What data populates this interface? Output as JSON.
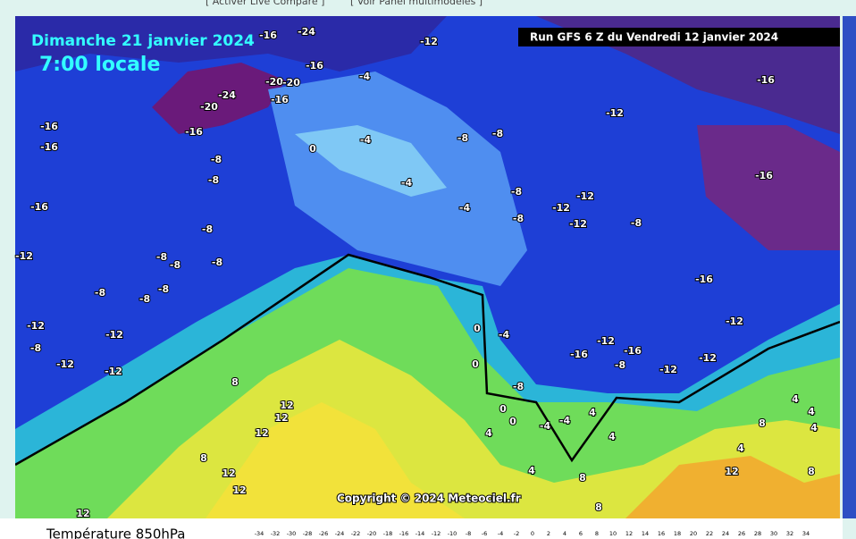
{
  "header": {
    "links": [
      "[ Activer Live Compare ]",
      "[ Voir Panel multimodèles ]"
    ]
  },
  "map": {
    "date": "Dimanche 21 janvier 2024",
    "time": "7:00 locale",
    "run": "Run GFS 6 Z du Vendredi 12 janvier 2024",
    "copyright": "Copyright © 2024 Meteociel.fr",
    "labels": [
      "-12",
      "-16",
      "-24",
      "-16",
      "-4",
      "-20",
      "-20",
      "-16",
      "-24",
      "-20",
      "-16",
      "-16",
      "-16",
      "-8",
      "-8",
      "-16",
      "-8",
      "-8",
      "-8",
      "-8",
      "-8",
      "-8",
      "-8",
      "-12",
      "-12",
      "-12",
      "-8",
      "-12",
      "-12",
      "0",
      "-4",
      "-4",
      "-8",
      "-8",
      "-8",
      "-12",
      "-12",
      "-12",
      "-8",
      "-8",
      "-4",
      "-12",
      "-16",
      "-16",
      "-16",
      "-12",
      "-12",
      "-16",
      "-16",
      "-8",
      "-12",
      "-12",
      "0",
      "-4",
      "0",
      "-8",
      "0",
      "0",
      "-4",
      "-4",
      "4",
      "8",
      "12",
      "12",
      "12",
      "4",
      "8",
      "12",
      "12",
      "4",
      "4",
      "8",
      "12",
      "8",
      "4",
      "4",
      "8",
      "4",
      "4",
      "12",
      "8"
    ]
  },
  "footer": {
    "title": "Température 850hPa",
    "scale": [
      -34,
      -32,
      -30,
      -28,
      -26,
      -24,
      -22,
      -20,
      -18,
      -16,
      -14,
      -12,
      -10,
      -8,
      -6,
      -4,
      -2,
      0,
      2,
      4,
      6,
      8,
      10,
      12,
      14,
      16,
      18,
      20,
      22,
      24,
      26,
      28,
      30,
      32,
      34
    ]
  }
}
